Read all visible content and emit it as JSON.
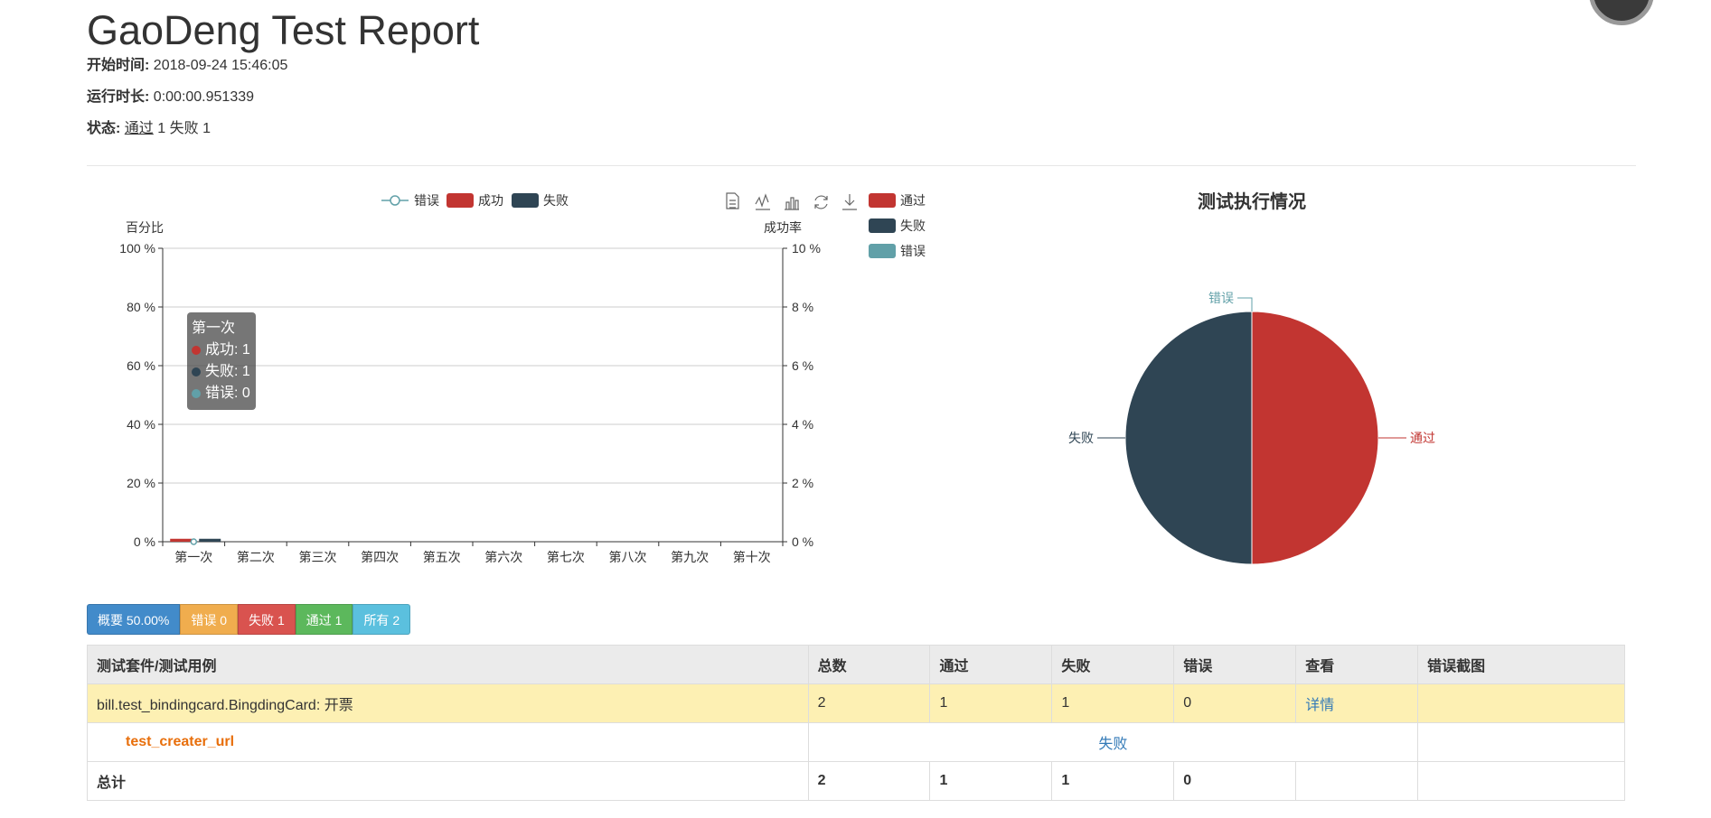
{
  "header": {
    "title": "GaoDeng Test Report",
    "start_label": "开始时间:",
    "start_value": "2018-09-24 15:46:05",
    "duration_label": "运行时长:",
    "duration_value": "0:00:00.951339",
    "status_label": "状态:",
    "status_pass": "通过",
    "status_pass_count": "1",
    "status_fail": "失败",
    "status_fail_count": "1"
  },
  "chart_data": [
    {
      "type": "bar",
      "legend": [
        "错误",
        "成功",
        "失败"
      ],
      "left_axis_title": "百分比",
      "right_axis_title": "成功率",
      "left_ticks": [
        "0 %",
        "20 %",
        "40 %",
        "60 %",
        "80 %",
        "100 %"
      ],
      "right_ticks": [
        "0 %",
        "2 %",
        "4 %",
        "6 %",
        "8 %",
        "10 %"
      ],
      "categories": [
        "第一次",
        "第二次",
        "第三次",
        "第四次",
        "第五次",
        "第六次",
        "第七次",
        "第八次",
        "第九次",
        "第十次"
      ],
      "ylim": [
        0,
        100
      ],
      "series": [
        {
          "name": "成功",
          "type": "bar",
          "color": "#c23531",
          "values": [
            1,
            null,
            null,
            null,
            null,
            null,
            null,
            null,
            null,
            null
          ]
        },
        {
          "name": "失败",
          "type": "bar",
          "color": "#2f4554",
          "values": [
            1,
            null,
            null,
            null,
            null,
            null,
            null,
            null,
            null,
            null
          ]
        },
        {
          "name": "错误",
          "type": "line",
          "color": "#61a0a8",
          "values": [
            0,
            null,
            null,
            null,
            null,
            null,
            null,
            null,
            null,
            null
          ]
        }
      ],
      "toolbox": [
        "data-view-icon",
        "line-chart-icon",
        "bar-chart-icon",
        "restore-icon",
        "download-icon"
      ],
      "tooltip": {
        "title": "第一次",
        "rows": [
          {
            "label": "成功: 1",
            "color": "#c23531"
          },
          {
            "label": "失败: 1",
            "color": "#2f4554"
          },
          {
            "label": "错误: 0",
            "color": "#61a0a8"
          }
        ]
      }
    },
    {
      "type": "pie",
      "title": "测试执行情况",
      "legend": [
        "通过",
        "失败",
        "错误"
      ],
      "slices": [
        {
          "name": "通过",
          "value": 1,
          "color": "#c23531"
        },
        {
          "name": "失败",
          "value": 1,
          "color": "#2f4554"
        },
        {
          "name": "错误",
          "value": 0,
          "color": "#61a0a8"
        }
      ]
    }
  ],
  "filters": [
    {
      "label": "概要 50.00%",
      "color": "#428bca"
    },
    {
      "label": "错误 0",
      "color": "#f0ad4e"
    },
    {
      "label": "失败 1",
      "color": "#d9534f"
    },
    {
      "label": "通过 1",
      "color": "#5cb85c"
    },
    {
      "label": "所有 2",
      "color": "#5bc0de"
    }
  ],
  "table": {
    "headers": [
      "测试套件/测试用例",
      "总数",
      "通过",
      "失败",
      "错误",
      "查看",
      "错误截图"
    ],
    "suite_row": {
      "name": "bill.test_bindingcard.BingdingCard: 开票",
      "total": "2",
      "pass": "1",
      "fail": "1",
      "error": "0",
      "view": "详情"
    },
    "case_row": {
      "name": "test_creater_url",
      "status": "失败"
    },
    "total_row": {
      "label": "总计",
      "total": "2",
      "pass": "1",
      "fail": "1",
      "error": "0"
    }
  }
}
